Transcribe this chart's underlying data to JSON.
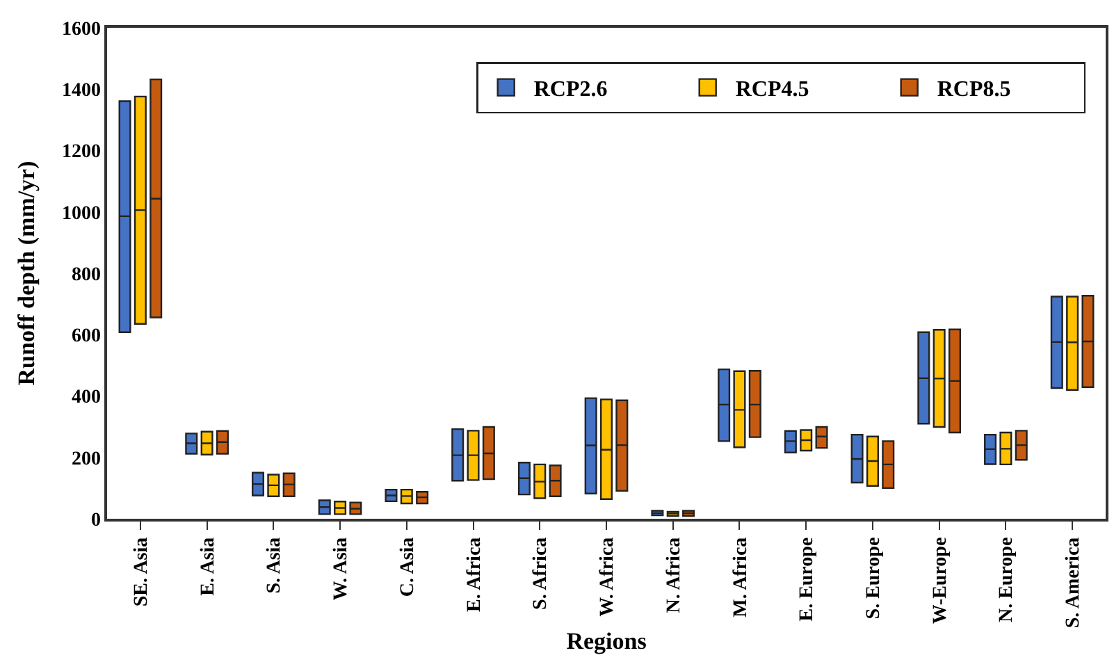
{
  "chart_data": {
    "type": "box",
    "xlabel": "Regions",
    "ylabel": "Runoff depth (mm/yr)",
    "categories": [
      "SE. Asia",
      "E. Asia",
      "S. Asia",
      "W. Asia",
      "C. Asia",
      "E. Africa",
      "S. Africa",
      "W. Africa",
      "N. Africa",
      "M. Africa",
      "E. Europe",
      "S. Europe",
      "W-Europe",
      "N. Europe",
      "S. America"
    ],
    "ylim": [
      0,
      1600
    ],
    "yticks": [
      0,
      200,
      400,
      600,
      800,
      1000,
      1200,
      1400,
      1600
    ],
    "legend": "top right",
    "series": [
      {
        "name": "RCP2.6",
        "color": "#4472c4",
        "boxes": [
          {
            "low": 608,
            "q1": 608,
            "median": 986,
            "q3": 1361,
            "high": 1361
          },
          {
            "low": 212,
            "q1": 212,
            "median": 246,
            "q3": 278,
            "high": 278
          },
          {
            "low": 76,
            "q1": 76,
            "median": 113,
            "q3": 150,
            "high": 150
          },
          {
            "low": 15,
            "q1": 15,
            "median": 38,
            "q3": 60,
            "high": 60
          },
          {
            "low": 57,
            "q1": 57,
            "median": 76,
            "q3": 95,
            "high": 95
          },
          {
            "low": 124,
            "q1": 124,
            "median": 207,
            "q3": 292,
            "high": 292
          },
          {
            "low": 79,
            "q1": 79,
            "median": 132,
            "q3": 183,
            "high": 183
          },
          {
            "low": 82,
            "q1": 82,
            "median": 239,
            "q3": 393,
            "high": 393
          },
          {
            "low": 11,
            "q1": 11,
            "median": 18,
            "q3": 26,
            "high": 26
          },
          {
            "low": 253,
            "q1": 253,
            "median": 372,
            "q3": 487,
            "high": 487
          },
          {
            "low": 216,
            "q1": 216,
            "median": 253,
            "q3": 286,
            "high": 286
          },
          {
            "low": 118,
            "q1": 118,
            "median": 195,
            "q3": 274,
            "high": 274
          },
          {
            "low": 310,
            "q1": 310,
            "median": 458,
            "q3": 608,
            "high": 608
          },
          {
            "low": 178,
            "q1": 178,
            "median": 227,
            "q3": 274,
            "high": 274
          },
          {
            "low": 426,
            "q1": 426,
            "median": 576,
            "q3": 724,
            "high": 724
          }
        ]
      },
      {
        "name": "RCP4.5",
        "color": "#ffc000",
        "boxes": [
          {
            "low": 635,
            "q1": 635,
            "median": 1006,
            "q3": 1376,
            "high": 1376
          },
          {
            "low": 209,
            "q1": 209,
            "median": 246,
            "q3": 284,
            "high": 284
          },
          {
            "low": 73,
            "q1": 73,
            "median": 109,
            "q3": 144,
            "high": 144
          },
          {
            "low": 15,
            "q1": 15,
            "median": 35,
            "q3": 56,
            "high": 56
          },
          {
            "low": 50,
            "q1": 50,
            "median": 74,
            "q3": 95,
            "high": 95
          },
          {
            "low": 126,
            "q1": 126,
            "median": 207,
            "q3": 287,
            "high": 287
          },
          {
            "low": 67,
            "q1": 67,
            "median": 121,
            "q3": 177,
            "high": 177
          },
          {
            "low": 64,
            "q1": 64,
            "median": 225,
            "q3": 389,
            "high": 389
          },
          {
            "low": 9,
            "q1": 9,
            "median": 17,
            "q3": 23,
            "high": 23
          },
          {
            "low": 233,
            "q1": 233,
            "median": 355,
            "q3": 481,
            "high": 481
          },
          {
            "low": 222,
            "q1": 222,
            "median": 256,
            "q3": 289,
            "high": 289
          },
          {
            "low": 107,
            "q1": 107,
            "median": 188,
            "q3": 268,
            "high": 268
          },
          {
            "low": 299,
            "q1": 299,
            "median": 457,
            "q3": 616,
            "high": 616
          },
          {
            "low": 177,
            "q1": 177,
            "median": 228,
            "q3": 281,
            "high": 281
          },
          {
            "low": 420,
            "q1": 420,
            "median": 575,
            "q3": 724,
            "high": 724
          }
        ]
      },
      {
        "name": "RCP8.5",
        "color": "#c55a11",
        "boxes": [
          {
            "low": 656,
            "q1": 656,
            "median": 1043,
            "q3": 1432,
            "high": 1432
          },
          {
            "low": 212,
            "q1": 212,
            "median": 250,
            "q3": 286,
            "high": 286
          },
          {
            "low": 73,
            "q1": 73,
            "median": 112,
            "q3": 148,
            "high": 148
          },
          {
            "low": 15,
            "q1": 15,
            "median": 33,
            "q3": 53,
            "high": 53
          },
          {
            "low": 50,
            "q1": 50,
            "median": 70,
            "q3": 88,
            "high": 88
          },
          {
            "low": 129,
            "q1": 129,
            "median": 213,
            "q3": 299,
            "high": 299
          },
          {
            "low": 73,
            "q1": 73,
            "median": 124,
            "q3": 174,
            "high": 174
          },
          {
            "low": 91,
            "q1": 91,
            "median": 240,
            "q3": 386,
            "high": 386
          },
          {
            "low": 9,
            "q1": 9,
            "median": 18,
            "q3": 26,
            "high": 26
          },
          {
            "low": 266,
            "q1": 266,
            "median": 372,
            "q3": 482,
            "high": 482
          },
          {
            "low": 231,
            "q1": 231,
            "median": 268,
            "q3": 299,
            "high": 299
          },
          {
            "low": 100,
            "q1": 100,
            "median": 177,
            "q3": 253,
            "high": 253
          },
          {
            "low": 281,
            "q1": 281,
            "median": 449,
            "q3": 617,
            "high": 617
          },
          {
            "low": 192,
            "q1": 192,
            "median": 240,
            "q3": 287,
            "high": 287
          },
          {
            "low": 429,
            "q1": 429,
            "median": 578,
            "q3": 727,
            "high": 727
          }
        ]
      }
    ]
  }
}
